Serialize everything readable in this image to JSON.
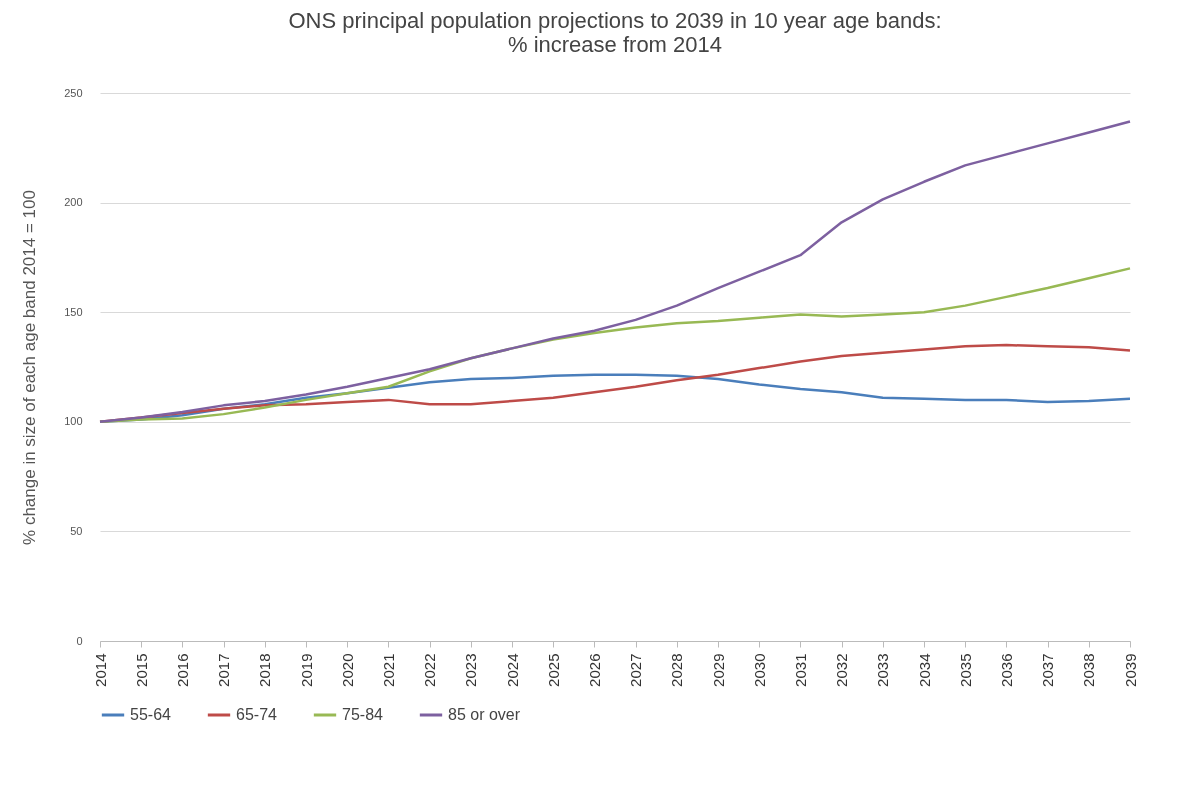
{
  "chart_data": {
    "type": "line",
    "title": [
      "ONS principal population  projections to 2039 in 10 year age bands:",
      "% increase from 2014"
    ],
    "ylabel": "% change in size of each age band 2014 = 100",
    "categories": [
      "2014",
      "2015",
      "2016",
      "2017",
      "2018",
      "2019",
      "2020",
      "2021",
      "2022",
      "2023",
      "2024",
      "2025",
      "2026",
      "2027",
      "2028",
      "2029",
      "2030",
      "2031",
      "2032",
      "2033",
      "2034",
      "2035",
      "2036",
      "2037",
      "2038",
      "2039"
    ],
    "series": [
      {
        "name": "55-64",
        "color": "#4a7ebb",
        "values": [
          100,
          101,
          103,
          106,
          108,
          111,
          113,
          115.5,
          118,
          119.5,
          120,
          121,
          121.5,
          121.5,
          121,
          119.5,
          117,
          115,
          113.5,
          111,
          110.5,
          110,
          110,
          109,
          109.5,
          110.5
        ]
      },
      {
        "name": "65-74",
        "color": "#be4b48",
        "values": [
          100,
          102,
          104,
          106,
          107.5,
          108,
          109,
          110,
          108,
          108,
          109.5,
          111,
          113.5,
          116,
          119,
          121.5,
          124.5,
          127.5,
          130,
          131.5,
          133,
          134.5,
          135,
          134.5,
          134,
          132.5
        ]
      },
      {
        "name": "75-84",
        "color": "#98b954",
        "values": [
          100,
          101,
          101.5,
          103.5,
          106.5,
          110,
          113,
          116,
          123,
          129,
          133.5,
          137.5,
          140.5,
          143,
          145,
          146,
          147.5,
          149,
          148,
          149,
          150,
          153,
          157,
          161,
          165.5,
          170
        ]
      },
      {
        "name": "85 or over",
        "color": "#7d60a0",
        "values": [
          100,
          102,
          104.5,
          107.5,
          109.5,
          112.5,
          116,
          120,
          124,
          129,
          133.5,
          138,
          141.5,
          146.5,
          153,
          161,
          168.5,
          176,
          191,
          201.5,
          209.5,
          217,
          222,
          227,
          232,
          237
        ]
      }
    ],
    "ylim": [
      0,
      250
    ],
    "yticks": [
      0,
      50,
      100,
      150,
      200,
      250
    ],
    "grid": "y",
    "legend": "bottom",
    "marker": "none",
    "line_style": "solid"
  }
}
